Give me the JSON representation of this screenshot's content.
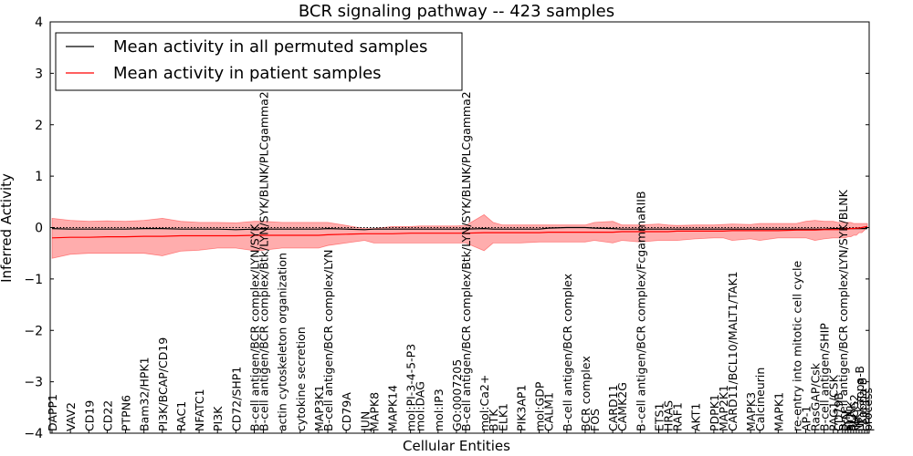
{
  "chart_data": {
    "type": "line",
    "title": "BCR signaling pathway -- 423 samples",
    "xlabel": "Cellular Entities",
    "ylabel": "Inferred Activity",
    "ylim": [
      -4,
      4
    ],
    "yticks": [
      -4,
      -3,
      -2,
      -1,
      0,
      1,
      2,
      3,
      4
    ],
    "ytick_labels": [
      "−4",
      "−3",
      "−2",
      "−1",
      "0",
      "1",
      "2",
      "3",
      "4"
    ],
    "legend": {
      "position": "top-left",
      "entries": [
        {
          "label": "Mean activity in all permuted samples",
          "color": "#000000"
        },
        {
          "label": "Mean activity in patient samples",
          "color": "#ff0000"
        }
      ]
    },
    "categories": [
      "DAPP1",
      "VAV2",
      "CD19",
      "CD22",
      "PTPN6",
      "Bam32/HPK1",
      "PI3K/BCAP/CD19",
      "RAC1",
      "NFATC1",
      "PI3K",
      "CD72/SHP1",
      "B-cell antigen/BCR complex/LYN/SYK",
      "B-cell antigen/BCR complex/Btk/LYN/SYK/BLNK/PLCgamma2",
      "actin cytoskeleton organization",
      "cytokine secretion",
      "MAP3K1",
      "B-cell antigen/BCR complex/LYN",
      "CD79A",
      "JUN",
      "MAPK8",
      "MAPK14",
      "mol:PI-3-4-5-P3",
      "mol:DAG",
      "mol:IP3",
      "GO:0007205",
      "B-cell antigen/BCR complex/Btk/LYN/SYK/BLNK/PLCgamma2",
      "mol:Ca2+",
      "BTK",
      "ELK1",
      "PIK3AP1",
      "mol:GDP",
      "CALM1",
      "B-cell antigen/BCR complex",
      "BCR complex",
      "FOS",
      "CARD11",
      "CAMK2G",
      "B-cell antigen/BCR complex/FcgammaRIIB",
      "ETS1",
      "HRAS",
      "RAF1",
      "AKT1",
      "PDPK1",
      "MAP2K1",
      "CARD11/BCL10/MALT1/TAK1",
      "MAPK3",
      "Calcineurin",
      "MAPK1",
      "re-entry into mitotic cell cycle",
      "AP-1",
      "RasGAP/Csk",
      "B-cell antigen/SHIP",
      "PAG1/CSK",
      "CD79B",
      "B-cell antigen/BCR complex/LYN/SYK/BLNK",
      "LYN",
      "SYK",
      "BLNK",
      "PLCG2",
      "IKK",
      "NF-kappa-B",
      "I-kappa-B",
      "cell",
      "process"
    ],
    "x": [
      0,
      2,
      4,
      6,
      8,
      10,
      12,
      14,
      16,
      18,
      20,
      22,
      23,
      25,
      27,
      29,
      30,
      32,
      34,
      35,
      37,
      39,
      40,
      42,
      44,
      45,
      47,
      48,
      49,
      51,
      53,
      54,
      56,
      58,
      59,
      61,
      62,
      64,
      66,
      67,
      68,
      70,
      72,
      73,
      74,
      76,
      77,
      79,
      81,
      82,
      83,
      84,
      85,
      85.5,
      86,
      86.3,
      86.6,
      86.9,
      87.2,
      87.5,
      87.8,
      88.1,
      88.4,
      88.7
    ],
    "series": [
      {
        "name": "Mean activity in all permuted samples",
        "color": "#000000",
        "values": [
          -0.02,
          -0.03,
          -0.03,
          -0.03,
          -0.03,
          -0.02,
          -0.02,
          -0.03,
          -0.03,
          -0.03,
          -0.04,
          -0.03,
          -0.03,
          -0.03,
          -0.03,
          -0.03,
          -0.02,
          -0.03,
          -0.04,
          -0.03,
          -0.03,
          -0.03,
          -0.03,
          -0.03,
          -0.03,
          -0.03,
          -0.02,
          -0.03,
          -0.03,
          -0.03,
          -0.03,
          -0.01,
          0.0,
          0.0,
          -0.01,
          -0.02,
          -0.03,
          -0.03,
          -0.03,
          -0.03,
          -0.03,
          -0.03,
          -0.03,
          -0.03,
          -0.03,
          -0.03,
          -0.03,
          -0.03,
          -0.03,
          -0.03,
          -0.03,
          -0.03,
          -0.02,
          -0.02,
          -0.02,
          -0.02,
          -0.02,
          -0.02,
          -0.02,
          -0.02,
          -0.02,
          -0.02,
          -0.02,
          -0.02
        ]
      },
      {
        "name": "Mean activity in patient samples",
        "color": "#ff0000",
        "values": [
          -0.2,
          -0.19,
          -0.19,
          -0.18,
          -0.18,
          -0.17,
          -0.17,
          -0.16,
          -0.16,
          -0.16,
          -0.16,
          -0.15,
          -0.15,
          -0.15,
          -0.15,
          -0.15,
          -0.14,
          -0.13,
          -0.12,
          -0.12,
          -0.12,
          -0.11,
          -0.11,
          -0.11,
          -0.11,
          -0.11,
          -0.1,
          -0.1,
          -0.1,
          -0.1,
          -0.1,
          -0.09,
          -0.09,
          -0.09,
          -0.09,
          -0.09,
          -0.08,
          -0.08,
          -0.08,
          -0.08,
          -0.07,
          -0.07,
          -0.07,
          -0.07,
          -0.06,
          -0.06,
          -0.06,
          -0.06,
          -0.05,
          -0.05,
          -0.05,
          -0.04,
          -0.04,
          -0.04,
          -0.03,
          -0.03,
          -0.03,
          -0.02,
          -0.02,
          -0.01,
          -0.01,
          0.0,
          0.01,
          0.02
        ]
      }
    ],
    "band": {
      "name": "patient sample spread",
      "color": "#ff0000",
      "upper": [
        0.18,
        0.14,
        0.12,
        0.13,
        0.12,
        0.14,
        0.18,
        0.12,
        0.1,
        0.1,
        0.09,
        0.12,
        0.12,
        0.1,
        0.1,
        0.1,
        0.1,
        0.04,
        -0.02,
        -0.02,
        0.02,
        0.02,
        0.03,
        0.03,
        0.03,
        0.04,
        0.25,
        0.1,
        0.05,
        0.05,
        0.05,
        0.05,
        0.05,
        0.05,
        0.1,
        0.12,
        0.05,
        0.05,
        0.07,
        0.05,
        0.04,
        0.05,
        0.05,
        0.06,
        0.07,
        0.06,
        0.08,
        0.08,
        0.08,
        0.12,
        0.14,
        0.12,
        0.12,
        0.1,
        0.1,
        0.1,
        0.1,
        0.1,
        0.08,
        0.08,
        0.08,
        0.08,
        0.08,
        0.08
      ],
      "lower": [
        -0.6,
        -0.52,
        -0.5,
        -0.5,
        -0.5,
        -0.5,
        -0.55,
        -0.46,
        -0.44,
        -0.4,
        -0.4,
        -0.45,
        -0.44,
        -0.4,
        -0.4,
        -0.4,
        -0.35,
        -0.3,
        -0.25,
        -0.3,
        -0.3,
        -0.3,
        -0.3,
        -0.3,
        -0.3,
        -0.3,
        -0.45,
        -0.3,
        -0.3,
        -0.3,
        -0.28,
        -0.28,
        -0.28,
        -0.28,
        -0.25,
        -0.3,
        -0.25,
        -0.28,
        -0.25,
        -0.25,
        -0.25,
        -0.22,
        -0.2,
        -0.2,
        -0.25,
        -0.22,
        -0.25,
        -0.2,
        -0.2,
        -0.2,
        -0.25,
        -0.22,
        -0.2,
        -0.2,
        -0.2,
        -0.2,
        -0.18,
        -0.18,
        -0.15,
        -0.15,
        -0.1,
        -0.1,
        -0.05,
        0.0
      ]
    },
    "reference_line": 0,
    "grid": false
  }
}
